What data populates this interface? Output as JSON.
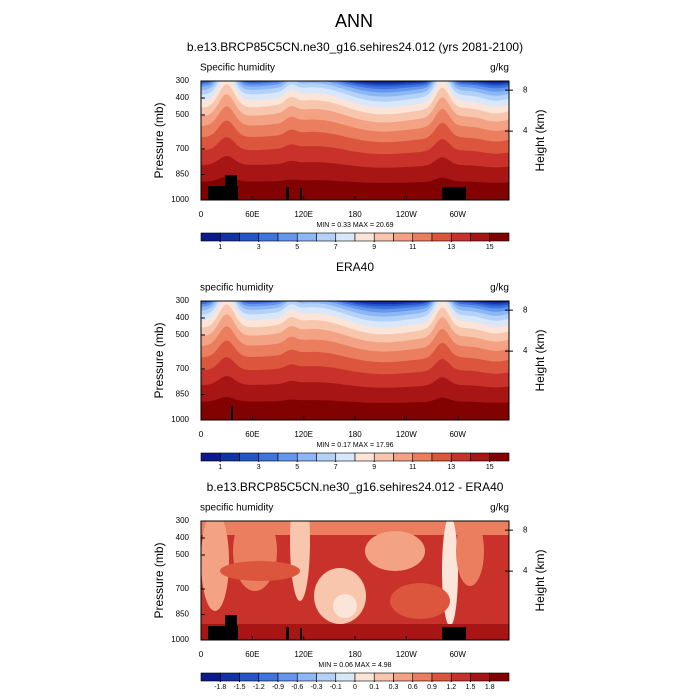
{
  "title": "ANN",
  "chart_data": [
    {
      "type": "contour",
      "title": "b.e13.BRCP85C5CN.ne30_g16.sehires24.012 (yrs 2081-2100)",
      "left_string": "Specific humidity",
      "right_string": "g/kg",
      "ylabel": "Pressure (mb)",
      "y2label": "Height (km)",
      "xlim": [
        0,
        360
      ],
      "xticks": [
        0,
        {
          "value": 60,
          "label": "60E"
        },
        {
          "value": 120,
          "label": "120E"
        },
        180,
        {
          "value": 240,
          "label": "120W"
        },
        {
          "value": 300,
          "label": "60W"
        }
      ],
      "ylim": [
        1000,
        300
      ],
      "yticks": [
        300,
        400,
        500,
        700,
        850,
        1000
      ],
      "y2ticks": [
        8,
        4
      ],
      "stats": "MIN =   0.33   MAX =   20.69",
      "colorbar": {
        "lim": [
          0,
          16
        ],
        "ticks": [
          1,
          3,
          5,
          7,
          9,
          11,
          13,
          15
        ],
        "colors": [
          "#0a1a8a",
          "#1233a6",
          "#2553c8",
          "#3f74de",
          "#6396ec",
          "#8cb6f4",
          "#b4d1f8",
          "#d9e7fb",
          "#fbe4d8",
          "#f8c6ad",
          "#f3a383",
          "#ea7e5e",
          "#dc563e",
          "#c8322a",
          "#a81515",
          "#820202"
        ]
      }
    },
    {
      "type": "contour",
      "title": "ERA40",
      "left_string": "specific humidity",
      "right_string": "g/kg",
      "ylabel": "Pressure (mb)",
      "y2label": "Height (km)",
      "xlim": [
        0,
        360
      ],
      "xticks": [
        0,
        {
          "value": 60,
          "label": "60E"
        },
        {
          "value": 120,
          "label": "120E"
        },
        180,
        {
          "value": 240,
          "label": "120W"
        },
        {
          "value": 300,
          "label": "60W"
        }
      ],
      "ylim": [
        1000,
        300
      ],
      "yticks": [
        300,
        400,
        500,
        700,
        850,
        1000
      ],
      "y2ticks": [
        8,
        4
      ],
      "stats": "MIN =   0.17   MAX =   17.96",
      "colorbar": {
        "lim": [
          0,
          16
        ],
        "ticks": [
          1,
          3,
          5,
          7,
          9,
          11,
          13,
          15
        ],
        "colors": [
          "#0a1a8a",
          "#1233a6",
          "#2553c8",
          "#3f74de",
          "#6396ec",
          "#8cb6f4",
          "#b4d1f8",
          "#d9e7fb",
          "#fbe4d8",
          "#f8c6ad",
          "#f3a383",
          "#ea7e5e",
          "#dc563e",
          "#c8322a",
          "#a81515",
          "#820202"
        ]
      }
    },
    {
      "type": "contour",
      "title": "b.e13.BRCP85C5CN.ne30_g16.sehires24.012 - ERA40",
      "left_string": "specific humidity",
      "right_string": "g/kg",
      "ylabel": "Pressure (mb)",
      "y2label": "Height (km)",
      "xlim": [
        0,
        360
      ],
      "xticks": [
        0,
        {
          "value": 60,
          "label": "60E"
        },
        {
          "value": 120,
          "label": "120E"
        },
        180,
        {
          "value": 240,
          "label": "120W"
        },
        {
          "value": 300,
          "label": "60W"
        }
      ],
      "ylim": [
        1000,
        300
      ],
      "yticks": [
        300,
        400,
        500,
        700,
        850,
        1000
      ],
      "y2ticks": [
        8,
        4
      ],
      "stats": "MIN =   0.06   MAX =   4.98",
      "colorbar": {
        "ticks": [
          -1.8,
          -1.5,
          -1.2,
          -0.9,
          -0.6,
          -0.3,
          -0.1,
          0,
          0.1,
          0.3,
          0.6,
          0.9,
          1.2,
          1.5,
          1.8
        ],
        "colors": [
          "#0a1a8a",
          "#1233a6",
          "#2553c8",
          "#3f74de",
          "#6396ec",
          "#8cb6f4",
          "#b4d1f8",
          "#d9e7fb",
          "#fbe4d8",
          "#f8c6ad",
          "#f3a383",
          "#ea7e5e",
          "#dc563e",
          "#c8322a",
          "#a81515",
          "#820202"
        ]
      }
    }
  ]
}
